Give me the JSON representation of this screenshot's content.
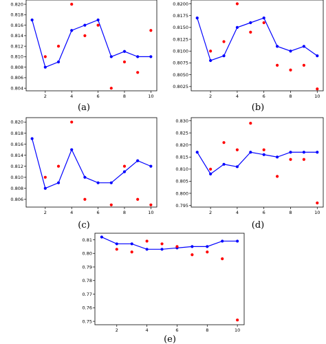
{
  "chart_data": [
    {
      "type": "scatter",
      "caption": "(a)",
      "x": [
        1,
        2,
        3,
        4,
        5,
        6,
        7,
        8,
        9,
        10
      ],
      "series": [
        {
          "color": "#0000ff",
          "style": "line-markers",
          "values": [
            0.817,
            0.808,
            0.809,
            0.815,
            0.816,
            0.817,
            0.81,
            0.811,
            0.81,
            0.81
          ]
        },
        {
          "color": "#ff0000",
          "style": "markers",
          "values": [
            null,
            0.81,
            0.812,
            0.82,
            0.814,
            0.816,
            0.804,
            0.809,
            0.807,
            0.815
          ]
        }
      ],
      "xticks": [
        2,
        4,
        6,
        8,
        10
      ],
      "yticks": [
        0.804,
        0.806,
        0.808,
        0.81,
        0.812,
        0.814,
        0.816,
        0.818,
        0.82
      ],
      "ytick_labels": [
        "0.804",
        "0.806",
        "0.808",
        "0.810",
        "0.812",
        "0.814",
        "0.816",
        "0.818",
        "0.820"
      ],
      "xlim": [
        0.55,
        10.45
      ],
      "ylim": [
        0.8035,
        0.8208
      ],
      "grid": false
    },
    {
      "type": "scatter",
      "caption": "(b)",
      "x": [
        1,
        2,
        3,
        4,
        5,
        6,
        7,
        8,
        9,
        10
      ],
      "series": [
        {
          "color": "#0000ff",
          "style": "line-markers",
          "values": [
            0.817,
            0.808,
            0.809,
            0.815,
            0.816,
            0.817,
            0.811,
            0.81,
            0.811,
            0.809
          ]
        },
        {
          "color": "#ff0000",
          "style": "markers",
          "values": [
            null,
            0.81,
            0.812,
            0.82,
            0.814,
            0.816,
            0.807,
            0.806,
            0.807,
            0.802
          ]
        }
      ],
      "xticks": [
        2,
        4,
        6,
        8,
        10
      ],
      "yticks": [
        0.8025,
        0.805,
        0.8075,
        0.81,
        0.8125,
        0.815,
        0.8175,
        0.82
      ],
      "ytick_labels": [
        "0.8025",
        "0.8050",
        "0.8075",
        "0.8100",
        "0.8125",
        "0.8150",
        "0.8175",
        "0.8200"
      ],
      "xlim": [
        0.55,
        10.45
      ],
      "ylim": [
        0.8016,
        0.8208
      ],
      "grid": false
    },
    {
      "type": "scatter",
      "caption": "(c)",
      "x": [
        1,
        2,
        3,
        4,
        5,
        6,
        7,
        8,
        9,
        10
      ],
      "series": [
        {
          "color": "#0000ff",
          "style": "line-markers",
          "values": [
            0.817,
            0.808,
            0.809,
            0.815,
            0.81,
            0.809,
            0.809,
            0.811,
            0.813,
            0.812
          ]
        },
        {
          "color": "#ff0000",
          "style": "markers",
          "values": [
            null,
            0.81,
            0.812,
            0.82,
            0.806,
            null,
            0.805,
            0.812,
            0.806,
            0.805
          ]
        }
      ],
      "xticks": [
        2,
        4,
        6,
        8,
        10
      ],
      "yticks": [
        0.806,
        0.808,
        0.81,
        0.812,
        0.814,
        0.816,
        0.818,
        0.82
      ],
      "ytick_labels": [
        "0.806",
        "0.808",
        "0.810",
        "0.812",
        "0.814",
        "0.816",
        "0.818",
        "0.820"
      ],
      "xlim": [
        0.55,
        10.45
      ],
      "ylim": [
        0.8046,
        0.8208
      ],
      "grid": false
    },
    {
      "type": "scatter",
      "caption": "(d)",
      "x": [
        1,
        2,
        3,
        4,
        5,
        6,
        7,
        8,
        9,
        10
      ],
      "series": [
        {
          "color": "#0000ff",
          "style": "line-markers",
          "values": [
            0.817,
            0.808,
            0.812,
            0.811,
            0.817,
            0.816,
            0.815,
            0.817,
            0.817,
            0.817
          ]
        },
        {
          "color": "#ff0000",
          "style": "markers",
          "values": [
            null,
            0.81,
            0.821,
            0.818,
            0.829,
            0.818,
            0.807,
            0.814,
            0.814,
            0.796
          ]
        }
      ],
      "xticks": [
        2,
        4,
        6,
        8,
        10
      ],
      "yticks": [
        0.795,
        0.8,
        0.805,
        0.81,
        0.815,
        0.82,
        0.825,
        0.83
      ],
      "ytick_labels": [
        "0.795",
        "0.800",
        "0.805",
        "0.810",
        "0.815",
        "0.820",
        "0.825",
        "0.830"
      ],
      "xlim": [
        0.55,
        10.45
      ],
      "ylim": [
        0.7943,
        0.8313
      ],
      "grid": false
    },
    {
      "type": "scatter",
      "caption": "(e)",
      "x": [
        1,
        2,
        3,
        4,
        5,
        6,
        7,
        8,
        9,
        10
      ],
      "series": [
        {
          "color": "#0000ff",
          "style": "line-markers",
          "values": [
            0.812,
            0.807,
            0.807,
            0.803,
            0.803,
            0.804,
            0.805,
            0.805,
            0.809,
            0.809
          ]
        },
        {
          "color": "#ff0000",
          "style": "markers",
          "values": [
            null,
            0.803,
            0.801,
            0.809,
            0.807,
            0.805,
            0.799,
            0.801,
            0.796,
            0.751
          ]
        }
      ],
      "xticks": [
        2,
        4,
        6,
        8,
        10
      ],
      "yticks": [
        0.75,
        0.76,
        0.77,
        0.78,
        0.79,
        0.8,
        0.81
      ],
      "ytick_labels": [
        "0.75",
        "0.76",
        "0.77",
        "0.78",
        "0.79",
        "0.80",
        "0.81"
      ],
      "xlim": [
        0.55,
        10.45
      ],
      "ylim": [
        0.7475,
        0.8148
      ],
      "grid": false
    }
  ]
}
